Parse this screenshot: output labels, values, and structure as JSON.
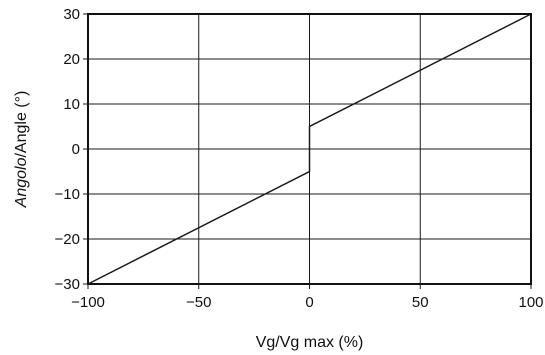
{
  "chart_data": {
    "type": "line",
    "title": "",
    "xlabel": "Vg/Vg max (%)",
    "ylabel_italic": "Angolo",
    "ylabel_rest": "/Angle (°)",
    "xlim": [
      -100,
      100
    ],
    "ylim": [
      -30,
      30
    ],
    "x_ticks": [
      -100,
      -50,
      0,
      50,
      100
    ],
    "x_tick_labels": [
      "−100",
      "−50",
      "0",
      "50",
      "100"
    ],
    "y_ticks": [
      30,
      20,
      10,
      0,
      -10,
      -20,
      -30
    ],
    "y_tick_labels": [
      "30",
      "20",
      "10",
      "0",
      "−10",
      "−20",
      "−30"
    ],
    "grid": true,
    "series": [
      {
        "x": [
          -100,
          0,
          0,
          100
        ],
        "y": [
          -30,
          -5,
          5,
          30
        ]
      }
    ]
  }
}
